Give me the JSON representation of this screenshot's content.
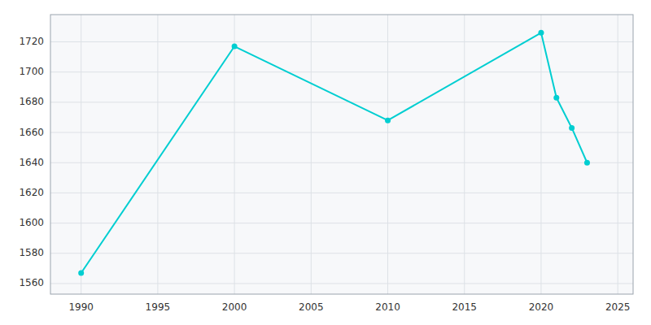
{
  "chart_data": {
    "type": "line",
    "x": [
      1990,
      2000,
      2010,
      2020,
      2021,
      2022,
      2023
    ],
    "values": [
      1567,
      1717,
      1668,
      1726,
      1683,
      1663,
      1640
    ],
    "color": "#00CED1",
    "marker": "circle",
    "xlim": [
      1988,
      2026
    ],
    "ylim": [
      1553,
      1738
    ],
    "xticks": [
      1990,
      1995,
      2000,
      2005,
      2010,
      2015,
      2020,
      2025
    ],
    "yticks": [
      1560,
      1580,
      1600,
      1620,
      1640,
      1660,
      1680,
      1700,
      1720
    ],
    "grid": true
  }
}
